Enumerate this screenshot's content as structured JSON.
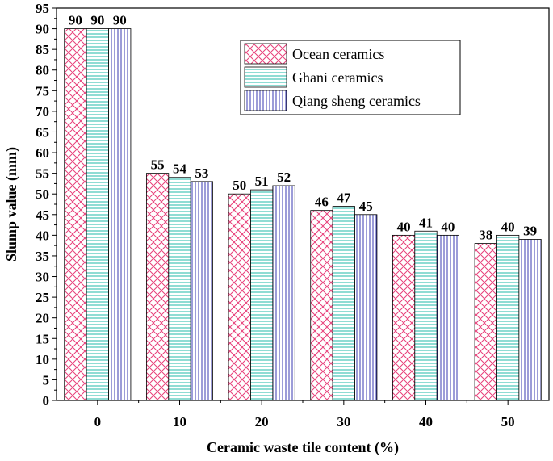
{
  "chart_data": {
    "type": "bar",
    "title": "",
    "xlabel": "Ceramic waste tile content (%)",
    "ylabel": "Slump value (mm)",
    "categories": [
      "0",
      "10",
      "20",
      "30",
      "40",
      "50"
    ],
    "ylim": [
      0,
      95
    ],
    "yticks": [
      0,
      5,
      10,
      15,
      20,
      25,
      30,
      35,
      40,
      45,
      50,
      55,
      60,
      65,
      70,
      75,
      80,
      85,
      90,
      95
    ],
    "series": [
      {
        "name": "Ocean ceramics",
        "values": [
          90,
          55,
          50,
          46,
          40,
          38
        ],
        "color": "#e8407a",
        "pattern": "crosshatch"
      },
      {
        "name": "Ghani ceramics",
        "values": [
          90,
          54,
          51,
          47,
          41,
          40
        ],
        "color": "#1fb8a8",
        "pattern": "horizontal"
      },
      {
        "name": "Qiang sheng ceramics",
        "values": [
          90,
          53,
          52,
          45,
          40,
          39
        ],
        "color": "#3a3ab0",
        "pattern": "vertical"
      }
    ],
    "legend_position": "top-right",
    "grid": false
  }
}
